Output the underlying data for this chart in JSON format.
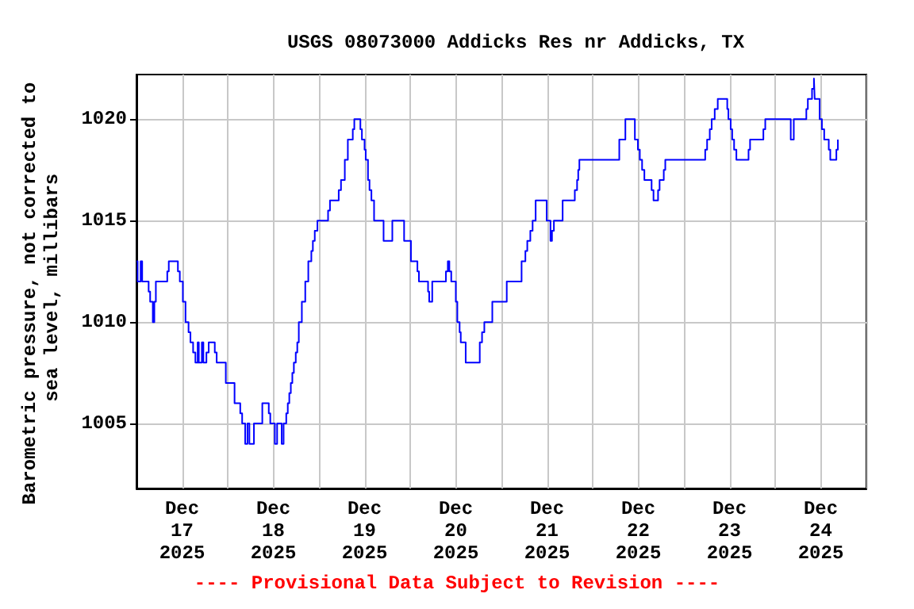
{
  "chart_data": {
    "type": "step",
    "title": "USGS 08073000 Addicks Res nr Addicks, TX",
    "ylabel": "Barometric pressure, not corrected to sea level, millibars",
    "annotations": [
      "---- Provisional Data Subject to Revision ----"
    ],
    "x": [
      "2025-12-17T00:00",
      "2025-12-17T00:18",
      "2025-12-17T01:06",
      "2025-12-17T01:30",
      "2025-12-17T03:12",
      "2025-12-17T03:36",
      "2025-12-17T04:18",
      "2025-12-17T04:42",
      "2025-12-17T05:06",
      "2025-12-17T08:06",
      "2025-12-17T08:30",
      "2025-12-17T10:54",
      "2025-12-17T11:24",
      "2025-12-17T12:12",
      "2025-12-17T12:54",
      "2025-12-17T13:42",
      "2025-12-17T14:12",
      "2025-12-17T14:54",
      "2025-12-17T15:30",
      "2025-12-17T16:06",
      "2025-12-17T16:24",
      "2025-12-17T17:12",
      "2025-12-17T17:36",
      "2025-12-17T18:24",
      "2025-12-17T19:00",
      "2025-12-17T20:36",
      "2025-12-17T21:06",
      "2025-12-17T23:30",
      "2025-12-18T01:48",
      "2025-12-18T03:18",
      "2025-12-18T03:48",
      "2025-12-18T04:36",
      "2025-12-18T05:12",
      "2025-12-18T05:42",
      "2025-12-18T06:54",
      "2025-12-18T09:06",
      "2025-12-18T10:48",
      "2025-12-18T11:12",
      "2025-12-18T12:24",
      "2025-12-18T13:00",
      "2025-12-18T14:12",
      "2025-12-18T14:42",
      "2025-12-18T15:24",
      "2025-12-18T15:48",
      "2025-12-18T16:12",
      "2025-12-18T16:36",
      "2025-12-18T17:00",
      "2025-12-18T17:24",
      "2025-12-18T17:54",
      "2025-12-18T18:18",
      "2025-12-18T18:42",
      "2025-12-18T19:30",
      "2025-12-18T20:24",
      "2025-12-18T21:12",
      "2025-12-18T22:00",
      "2025-12-18T22:24",
      "2025-12-18T22:54",
      "2025-12-18T23:36",
      "2025-12-19T02:24",
      "2025-12-19T02:54",
      "2025-12-19T05:12",
      "2025-12-19T05:48",
      "2025-12-19T06:48",
      "2025-12-19T07:36",
      "2025-12-19T08:54",
      "2025-12-19T09:18",
      "2025-12-19T10:54",
      "2025-12-19T11:18",
      "2025-12-19T12:00",
      "2025-12-19T12:18",
      "2025-12-19T12:54",
      "2025-12-19T13:18",
      "2025-12-19T13:48",
      "2025-12-19T14:30",
      "2025-12-19T17:00",
      "2025-12-19T19:18",
      "2025-12-19T22:24",
      "2025-12-20T00:12",
      "2025-12-20T01:54",
      "2025-12-20T02:18",
      "2025-12-20T04:42",
      "2025-12-20T05:00",
      "2025-12-20T05:48",
      "2025-12-20T09:24",
      "2025-12-20T09:54",
      "2025-12-20T10:18",
      "2025-12-20T10:48",
      "2025-12-20T12:00",
      "2025-12-20T12:24",
      "2025-12-20T13:00",
      "2025-12-20T13:18",
      "2025-12-20T14:36",
      "2025-12-20T18:18",
      "2025-12-20T18:54",
      "2025-12-20T19:30",
      "2025-12-20T21:36",
      "2025-12-21T01:24",
      "2025-12-21T05:18",
      "2025-12-21T06:18",
      "2025-12-21T06:48",
      "2025-12-21T07:36",
      "2025-12-21T08:12",
      "2025-12-21T09:00",
      "2025-12-21T11:54",
      "2025-12-21T12:54",
      "2025-12-21T13:18",
      "2025-12-21T13:48",
      "2025-12-21T16:06",
      "2025-12-21T19:18",
      "2025-12-21T19:54",
      "2025-12-21T20:12",
      "2025-12-21T20:30",
      "2025-12-22T07:00",
      "2025-12-22T08:36",
      "2025-12-22T11:06",
      "2025-12-22T11:54",
      "2025-12-22T12:24",
      "2025-12-22T13:00",
      "2025-12-22T13:36",
      "2025-12-22T15:30",
      "2025-12-22T16:00",
      "2025-12-22T17:12",
      "2025-12-22T17:36",
      "2025-12-22T18:42",
      "2025-12-22T19:06",
      "2025-12-23T05:36",
      "2025-12-23T06:06",
      "2025-12-23T06:48",
      "2025-12-23T07:18",
      "2025-12-23T08:06",
      "2025-12-23T08:54",
      "2025-12-23T11:24",
      "2025-12-23T11:42",
      "2025-12-23T12:18",
      "2025-12-23T12:42",
      "2025-12-23T13:12",
      "2025-12-23T13:48",
      "2025-12-23T17:00",
      "2025-12-23T17:24",
      "2025-12-23T20:54",
      "2025-12-23T21:24",
      "2025-12-24T04:06",
      "2025-12-24T04:54",
      "2025-12-24T08:12",
      "2025-12-24T08:36",
      "2025-12-24T09:42",
      "2025-12-24T10:12",
      "2025-12-24T10:24",
      "2025-12-24T11:42",
      "2025-12-24T12:18",
      "2025-12-24T12:54",
      "2025-12-24T14:06",
      "2025-12-24T14:30",
      "2025-12-24T16:06",
      "2025-12-24T16:30"
    ],
    "series": [
      {
        "color": "#0000ff",
        "values": [
          1013,
          1012,
          1013,
          1012,
          1011.5,
          1011,
          1010,
          1011,
          1012,
          1012.5,
          1013,
          1012.5,
          1012,
          1011,
          1010,
          1009.5,
          1009,
          1008.5,
          1008,
          1009,
          1008,
          1009,
          1008,
          1008.5,
          1009,
          1008.5,
          1008,
          1007,
          1006,
          1005.5,
          1005,
          1004,
          1005,
          1004,
          1005,
          1006,
          1005.5,
          1005,
          1004,
          1005,
          1004,
          1005,
          1005.5,
          1006,
          1006.5,
          1007,
          1007.5,
          1008,
          1008.5,
          1009,
          1010,
          1011,
          1012,
          1013,
          1013.5,
          1014,
          1014.5,
          1015,
          1015.5,
          1016,
          1016.5,
          1017,
          1018,
          1019,
          1019.5,
          1020,
          1019.5,
          1019,
          1018.5,
          1018,
          1017,
          1016.5,
          1016,
          1015,
          1014,
          1015,
          1014,
          1013,
          1012.5,
          1012,
          1011.5,
          1011,
          1012,
          1012.5,
          1013,
          1012.5,
          1012,
          1011,
          1010,
          1009.5,
          1009,
          1008,
          1009,
          1009.5,
          1010,
          1011,
          1012,
          1013,
          1013.5,
          1014,
          1014.5,
          1015,
          1016,
          1015,
          1014,
          1014.5,
          1015,
          1016,
          1016.5,
          1017,
          1017.5,
          1018,
          1019,
          1020,
          1019,
          1018.5,
          1018,
          1017.5,
          1017,
          1016.5,
          1016,
          1016.5,
          1017,
          1017.5,
          1018,
          1018.5,
          1019,
          1019.5,
          1020,
          1020.5,
          1021,
          1020.5,
          1020,
          1019.5,
          1019,
          1018.5,
          1018,
          1018.5,
          1019,
          1019.5,
          1020,
          1019,
          1020,
          1020.5,
          1021,
          1021.5,
          1022,
          1021,
          1020,
          1019.5,
          1019,
          1018.5,
          1018,
          1018.5,
          1019
        ]
      }
    ],
    "xlim": [
      "2025-12-17T00:00",
      "2025-12-25T00:00"
    ],
    "xticks": [
      {
        "value": "2025-12-17T00:00",
        "label": null
      },
      {
        "value": "2025-12-17T12:00",
        "label": "Dec\n17\n2025"
      },
      {
        "value": "2025-12-18T00:00",
        "label": null
      },
      {
        "value": "2025-12-18T12:00",
        "label": "Dec\n18\n2025"
      },
      {
        "value": "2025-12-19T00:00",
        "label": null
      },
      {
        "value": "2025-12-19T12:00",
        "label": "Dec\n19\n2025"
      },
      {
        "value": "2025-12-20T00:00",
        "label": null
      },
      {
        "value": "2025-12-20T12:00",
        "label": "Dec\n20\n2025"
      },
      {
        "value": "2025-12-21T00:00",
        "label": null
      },
      {
        "value": "2025-12-21T12:00",
        "label": "Dec\n21\n2025"
      },
      {
        "value": "2025-12-22T00:00",
        "label": null
      },
      {
        "value": "2025-12-22T12:00",
        "label": "Dec\n22\n2025"
      },
      {
        "value": "2025-12-23T00:00",
        "label": null
      },
      {
        "value": "2025-12-23T12:00",
        "label": "Dec\n23\n2025"
      },
      {
        "value": "2025-12-24T00:00",
        "label": null
      },
      {
        "value": "2025-12-24T12:00",
        "label": "Dec\n24\n2025"
      },
      {
        "value": "2025-12-25T00:00",
        "label": null
      }
    ],
    "ylim": [
      1001.8,
      1022.2
    ],
    "yticks": [
      1005,
      1010,
      1015,
      1020
    ],
    "grid": true,
    "marker": "none",
    "line_style": "solid"
  }
}
